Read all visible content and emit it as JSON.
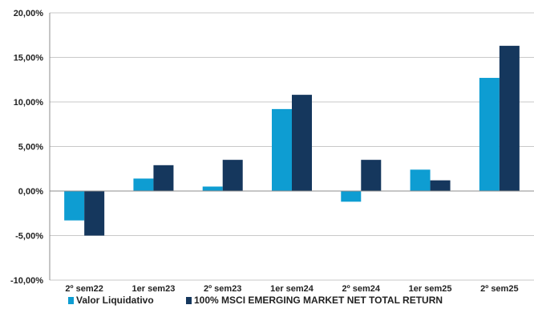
{
  "chart_data": {
    "type": "bar",
    "categories": [
      "2º sem22",
      "1er sem23",
      "2º sem23",
      "1er sem24",
      "2º sem24",
      "1er sem25",
      "2º sem25"
    ],
    "series": [
      {
        "name": "Valor Liquidativo",
        "color": "#0e9dd2",
        "values": [
          -3.3,
          1.4,
          0.5,
          9.2,
          -1.2,
          2.4,
          12.7
        ]
      },
      {
        "name": "100% MSCI EMERGING MARKET NET TOTAL RETURN",
        "color": "#15375d",
        "values": [
          -5.0,
          2.9,
          3.5,
          10.8,
          3.5,
          1.2,
          16.3
        ]
      }
    ],
    "ylim": [
      -10,
      20
    ],
    "yticks": [
      {
        "value": 20,
        "label": "20,00%"
      },
      {
        "value": 15,
        "label": "15,00%"
      },
      {
        "value": 10,
        "label": "10,00%"
      },
      {
        "value": 5,
        "label": "5,00%"
      },
      {
        "value": 0,
        "label": "0,00%"
      },
      {
        "value": -5,
        "label": "-5,00%"
      },
      {
        "value": -10,
        "label": "-10,00%"
      }
    ],
    "grid": true,
    "legend_position": "bottom-left"
  }
}
